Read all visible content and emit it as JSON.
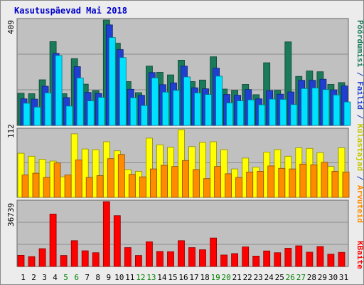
{
  "chart_data": {
    "type": "bar",
    "title": "Kasutuspäevad Mai 2018",
    "categories": [
      "1",
      "2",
      "3",
      "4",
      "5",
      "6",
      "7",
      "8",
      "9",
      "10",
      "11",
      "12",
      "13",
      "14",
      "15",
      "16",
      "17",
      "18",
      "19",
      "20",
      "21",
      "22",
      "23",
      "24",
      "25",
      "26",
      "27",
      "28",
      "29",
      "30",
      "31"
    ],
    "weekend_days": [
      "5",
      "6",
      "12",
      "13",
      "19",
      "20",
      "26",
      "27"
    ],
    "panels": [
      {
        "id": "top",
        "max_label": "409",
        "ymax": 409,
        "series": [
          {
            "name": "Pöördumisi",
            "color": "#1a7a5a",
            "values": [
              125,
              123,
              177,
              325,
              123,
              259,
              160,
              135,
              409,
              319,
              170,
              127,
              230,
              206,
              196,
              253,
              170,
              176,
              266,
              141,
              136,
              159,
              119,
              243,
              136,
              324,
              190,
              211,
              208,
              159,
              166
            ]
          },
          {
            "name": "Failid",
            "color": "#1f3fd0",
            "values": [
              103,
              102,
              152,
              279,
              108,
              228,
              128,
              124,
              390,
              294,
              140,
              117,
              205,
              158,
              165,
              230,
              146,
              142,
              222,
              120,
              117,
              139,
              103,
              135,
              121,
              130,
              175,
              175,
              179,
              138,
              153
            ]
          },
          {
            "name": "Külastajad",
            "color": "#00e0ff",
            "values": [
              86,
              71,
              126,
              271,
              75,
              184,
              95,
              109,
              341,
              263,
              107,
              77,
              184,
              129,
              136,
              188,
              126,
              120,
              191,
              87,
              95,
              99,
              80,
              102,
              101,
              81,
              143,
              145,
              139,
              118,
              91
            ]
          }
        ]
      },
      {
        "id": "middle",
        "max_label": "112",
        "ymax": 112,
        "series": [
          {
            "name": "Külastajad",
            "color": "#ffff00",
            "values": [
              73,
              68,
              63,
              60,
              34,
              105,
              80,
              79,
              92,
              77,
              46,
              43,
              98,
              87,
              83,
              112,
              84,
              91,
              92,
              79,
              47,
              65,
              50,
              75,
              79,
              68,
              82,
              81,
              74,
              51,
              82
            ]
          },
          {
            "name": "Arvuteid",
            "color": "#ff8c00",
            "values": [
              37,
              40,
              33,
              57,
              37,
              62,
              33,
              36,
              64,
              71,
              38,
              34,
              47,
              53,
              51,
              61,
              46,
              31,
              51,
              39,
              33,
              42,
              43,
              52,
              48,
              47,
              55,
              54,
              58,
              43,
              42
            ]
          }
        ]
      },
      {
        "id": "bottom",
        "max_label": "36739",
        "ymax": 36739,
        "series": [
          {
            "name": "KBaite",
            "color": "#ff0000",
            "values": [
              6300,
              5600,
              10100,
              29700,
              6200,
              14600,
              8900,
              7800,
              36739,
              28800,
              10700,
              6200,
              14000,
              8500,
              8400,
              14600,
              10700,
              9500,
              16100,
              6500,
              7300,
              11100,
              5900,
              8800,
              7800,
              10300,
              11700,
              8100,
              11300,
              7000,
              8000
            ]
          }
        ]
      }
    ],
    "right_legend_top": [
      "Pöördumisi",
      "Failid",
      "Külastajad",
      "Arvuteid",
      "KBaite"
    ],
    "right_legend_colors": {
      "Pöördumisi": "#1a7a5a",
      "Failid": "#1f3fd0",
      "Külastajad": "#c8c800",
      "Arvuteid": "#ff8c00",
      "KBaite": "#ff0000",
      "separator": "#1f3fd0"
    },
    "weekday_label_color": "#000000",
    "weekend_label_color": "#008000",
    "title_color": "#0000cc"
  }
}
